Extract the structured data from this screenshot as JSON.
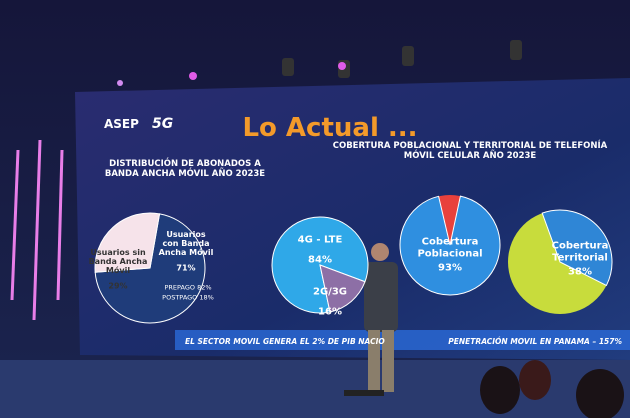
{
  "slide": {
    "logo_left": "ASEP",
    "logo_right": "5G",
    "title": "Lo Actual ...",
    "footer_left": "EL SECTOR MOVIL GENERA EL 2% DE PIB NACIO",
    "footer_right": "PENETRACIÓN MOVIL EN PANAMA – 157%"
  },
  "chart_data": [
    {
      "type": "pie",
      "title": "DISTRIBUCIÓN DE ABONADOS A BANDA ANCHA MÓVIL AÑO 2023E",
      "categories": [
        "Usuarios con Banda Ancha Móvil",
        "Usuarios sin Banda Ancha Móvil"
      ],
      "values": [
        71,
        29
      ],
      "value_labels": [
        "71%",
        "29%"
      ],
      "colors": [
        "#1f3c7a",
        "#f6e3ea"
      ],
      "annotations": [
        "PREPAGO 82%",
        "POSTPAGO 18%"
      ]
    },
    {
      "type": "pie",
      "categories": [
        "4G - LTE",
        "2G/3G"
      ],
      "values": [
        84,
        16
      ],
      "value_labels": [
        "84%",
        "16%"
      ],
      "colors": [
        "#2fa8e8",
        "#8d6fa6"
      ]
    },
    {
      "type": "pie",
      "title": "COBERTURA POBLACIONAL Y TERRITORIAL DE TELEFONÍA MÓVIL CELULAR AÑO 2023E",
      "categories": [
        "Cobertura Poblacional"
      ],
      "values": [
        93
      ],
      "value_labels": [
        "93%"
      ],
      "colors": [
        "#2f8fe0"
      ]
    },
    {
      "type": "pie",
      "categories": [
        "Cobertura Territorial"
      ],
      "values": [
        38
      ],
      "value_labels": [
        "38%"
      ],
      "colors": [
        "#2f86d6"
      ]
    }
  ]
}
